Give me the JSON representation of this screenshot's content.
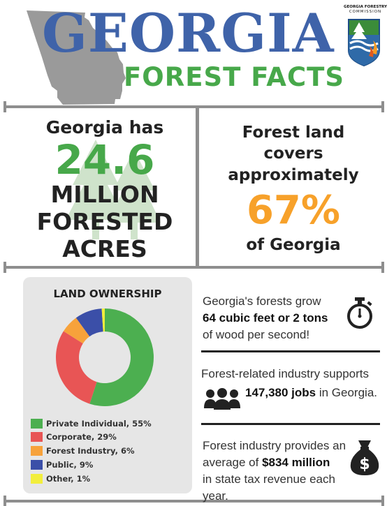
{
  "header": {
    "title_main": "GEORGIA",
    "title_sub": "FOREST FACTS",
    "logo_line1": "GEORGIA FORESTRY",
    "logo_line2": "COMMISSION",
    "icon": "georgia-state-map-icon"
  },
  "stat_left": {
    "intro": "Georgia has",
    "value": "24.6",
    "line1": "MILLION",
    "line2": "FORESTED",
    "line3": "ACRES",
    "icon": "pine-trees-icon"
  },
  "stat_right": {
    "line1": "Forest land",
    "line2": "covers",
    "line3": "approximately",
    "value": "67%",
    "tail": "of Georgia"
  },
  "ownership": {
    "title": "LAND OWNERSHIP",
    "items": [
      {
        "label": "Private Individual, 55%",
        "value": 55,
        "color": "#4caf50"
      },
      {
        "label": "Corporate, 29%",
        "value": 29,
        "color": "#e85555"
      },
      {
        "label": "Forest Industry, 6%",
        "value": 6,
        "color": "#f7a23b"
      },
      {
        "label": "Public, 9%",
        "value": 9,
        "color": "#3b4fa8"
      },
      {
        "label": "Other, 1%",
        "value": 1,
        "color": "#f2ee3c"
      }
    ]
  },
  "facts": {
    "growth": {
      "pre": "Georgia's forests grow",
      "bold": "64 cubic feet or 2 tons",
      "post": "of wood per second!",
      "icon": "stopwatch-icon"
    },
    "jobs": {
      "line1": "Forest-related industry supports",
      "bold": "147,380 jobs",
      "post": " in Georgia.",
      "icon": "people-group-icon"
    },
    "tax": {
      "pre": "Forest industry provides an",
      "pre2": "average of ",
      "bold": "$834 million",
      "post": "in state tax revenue each year.",
      "icon": "money-bag-icon"
    }
  },
  "colors": {
    "blue": "#3f63a9",
    "green": "#47a84a",
    "orange": "#f7a12a",
    "rule": "#8e8e8e"
  }
}
